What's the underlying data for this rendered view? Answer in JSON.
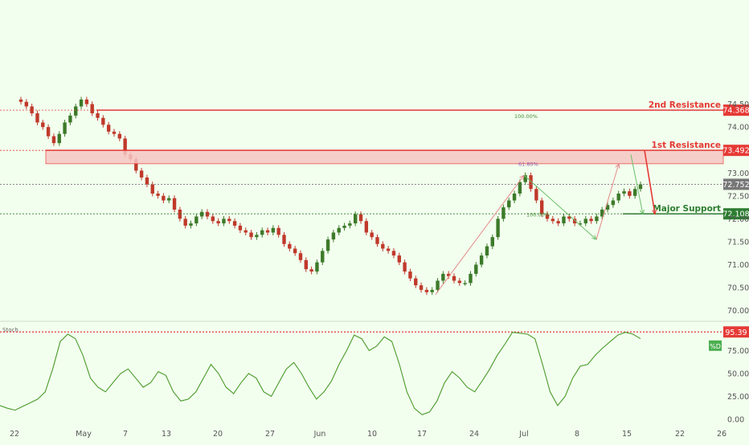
{
  "colors": {
    "background": "#f2ffee",
    "up_candle": "#3d7a2a",
    "down_candle": "#c0392b",
    "resistance": "#e53935",
    "support": "#2e7d32",
    "resistance_zone": "#f7c6c3",
    "stoch_line": "#4a9a2a",
    "axis_text": "#555555"
  },
  "chart_data": [
    {
      "type": "line",
      "title": "",
      "xlabel": "",
      "ylabel": "",
      "ylim": [
        69.8,
        76.7
      ],
      "x_ticks": [
        "22",
        "May",
        "7",
        "13",
        "20",
        "27",
        "Jun",
        "10",
        "17",
        "24",
        "Jul",
        "8",
        "15",
        "22",
        "26"
      ],
      "y_ticks": [
        "70.000",
        "70.500",
        "71.000",
        "71.500",
        "72.000",
        "72.500",
        "73.000",
        "74.000",
        "74.500"
      ],
      "series": [
        {
          "values": [
            74.55,
            74.45,
            74.3,
            74.1,
            74.0,
            73.8,
            73.65,
            73.85,
            74.1,
            74.25,
            74.45,
            74.6,
            74.5,
            74.3,
            74.2,
            74.05,
            73.9,
            73.85,
            73.75,
            73.4,
            73.3,
            73.05,
            72.9,
            72.75,
            72.55,
            72.5,
            72.4,
            72.45,
            72.2,
            72.0,
            71.85,
            71.9,
            72.05,
            72.15,
            72.05,
            71.95,
            71.9,
            72.0,
            71.95,
            71.85,
            71.75,
            71.7,
            71.6,
            71.65,
            71.75,
            71.7,
            71.8,
            71.65,
            71.45,
            71.35,
            71.25,
            71.1,
            70.9,
            70.85,
            71.05,
            71.3,
            71.55,
            71.7,
            71.8,
            71.85,
            71.9,
            72.1,
            71.95,
            71.7,
            71.6,
            71.45,
            71.35,
            71.3,
            71.2,
            71.05,
            70.85,
            70.7,
            70.55,
            70.45,
            70.4,
            70.45,
            70.65,
            70.8,
            70.75,
            70.65,
            70.6,
            70.6,
            70.8,
            71.0,
            71.2,
            71.4,
            71.6,
            72.0,
            72.25,
            72.4,
            72.55,
            72.8,
            72.95,
            72.65,
            72.4,
            72.1,
            72.0,
            71.95,
            71.9,
            72.05,
            72.0,
            71.9,
            71.9,
            72.0,
            71.95,
            72.05,
            72.2,
            72.3,
            72.4,
            72.55,
            72.6,
            72.5,
            72.65,
            72.75
          ]
        }
      ],
      "levels": [
        {
          "label": "2nd Resistance",
          "value": 74.368,
          "value_label": "74.368",
          "color": "#e53935"
        },
        {
          "label": "1st Resistance",
          "value": 73.492,
          "value_label": "73.492",
          "color": "#e53935"
        },
        {
          "label": "",
          "value": 72.752,
          "value_label": "72.752",
          "color": "#777777"
        },
        {
          "label": "Major Support",
          "value": 72.108,
          "value_label": "72.108",
          "color": "#2e7d32"
        }
      ],
      "zone": {
        "from": 73.2,
        "to": 73.492
      },
      "fib_labels": [
        "100.00%",
        "61.80%",
        "100.00%"
      ]
    },
    {
      "type": "line",
      "title": "Stoch",
      "ylim": [
        0,
        100
      ],
      "y_ticks": [
        "0.00",
        "25.00",
        "50.00",
        "75.00"
      ],
      "level": {
        "value": 95.39,
        "label": "95.39"
      },
      "legend": "%D",
      "series": [
        {
          "values": [
            15,
            12,
            10,
            14,
            18,
            22,
            30,
            55,
            85,
            93,
            88,
            70,
            45,
            35,
            30,
            40,
            50,
            55,
            45,
            35,
            40,
            52,
            48,
            30,
            20,
            22,
            30,
            45,
            60,
            50,
            35,
            28,
            40,
            50,
            45,
            30,
            25,
            40,
            55,
            62,
            50,
            35,
            22,
            30,
            42,
            60,
            75,
            92,
            88,
            75,
            80,
            90,
            85,
            60,
            30,
            12,
            5,
            8,
            20,
            40,
            52,
            45,
            35,
            30,
            42,
            55,
            70,
            82,
            95,
            94,
            93,
            88,
            60,
            30,
            15,
            25,
            45,
            58,
            60,
            70,
            78,
            85,
            92,
            95,
            93,
            88
          ]
        }
      ]
    }
  ]
}
